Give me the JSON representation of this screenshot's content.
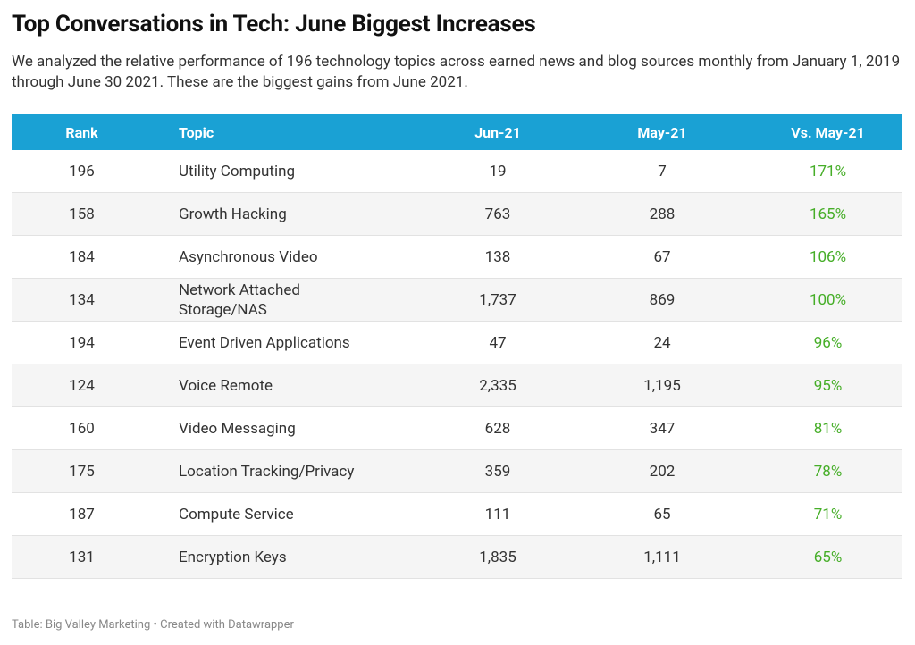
{
  "header": {
    "title": "Top Conversations in Tech: June Biggest Increases",
    "subtitle": "We analyzed the relative performance of 196 technology topics across earned news and blog sources monthly from January 1, 2019 through June 30 2021. These are the biggest gains from June 2021."
  },
  "table": {
    "columns": [
      "Rank",
      "Topic",
      "Jun-21",
      "May-21",
      "Vs. May-21"
    ],
    "rows": [
      [
        "196",
        "Utility Computing",
        "19",
        "7",
        "171%"
      ],
      [
        "158",
        "Growth Hacking",
        "763",
        "288",
        "165%"
      ],
      [
        "184",
        "Asynchronous Video",
        "138",
        "67",
        "106%"
      ],
      [
        "134",
        "Network Attached Storage/NAS",
        "1,737",
        "869",
        "100%"
      ],
      [
        "194",
        "Event Driven Applications",
        "47",
        "24",
        "96%"
      ],
      [
        "124",
        "Voice Remote",
        "2,335",
        "1,195",
        "95%"
      ],
      [
        "160",
        "Video Messaging",
        "628",
        "347",
        "81%"
      ],
      [
        "175",
        "Location Tracking/Privacy",
        "359",
        "202",
        "78%"
      ],
      [
        "187",
        "Compute Service",
        "111",
        "65",
        "71%"
      ],
      [
        "131",
        "Encryption Keys",
        "1,835",
        "1,111",
        "65%"
      ]
    ]
  },
  "footer": {
    "source": "Table: Big Valley Marketing",
    "credit": "Created with Datawrapper"
  }
}
